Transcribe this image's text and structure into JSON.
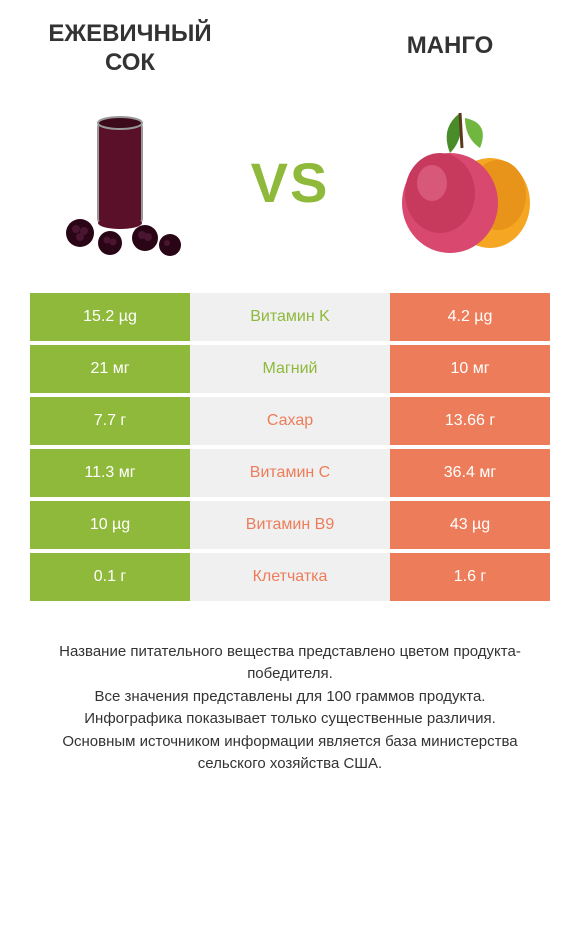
{
  "colors": {
    "green": "#8fb93b",
    "orange": "#ed7d5a",
    "mid_bg": "#f0f0f0",
    "text": "#333333"
  },
  "left": {
    "title": "ЕЖЕВИЧНЫЙ\nСОК"
  },
  "right": {
    "title": "МАНГО"
  },
  "vs": "VS",
  "rows": [
    {
      "left": "15.2 µg",
      "label": "Витамин K",
      "right": "4.2 µg",
      "label_color": "green"
    },
    {
      "left": "21 мг",
      "label": "Магний",
      "right": "10 мг",
      "label_color": "green"
    },
    {
      "left": "7.7 г",
      "label": "Сахар",
      "right": "13.66 г",
      "label_color": "orange"
    },
    {
      "left": "11.3 мг",
      "label": "Витамин C",
      "right": "36.4 мг",
      "label_color": "orange"
    },
    {
      "left": "10 µg",
      "label": "Витамин B9",
      "right": "43 µg",
      "label_color": "orange"
    },
    {
      "left": "0.1 г",
      "label": "Клетчатка",
      "right": "1.6 г",
      "label_color": "orange"
    }
  ],
  "footer": [
    "Название питательного вещества представлено цветом продукта-победителя.",
    "Все значения представлены для 100 граммов продукта.",
    "Инфографика показывает только существенные различия.",
    "Основным источником информации является база министерства сельского хозяйства США."
  ]
}
